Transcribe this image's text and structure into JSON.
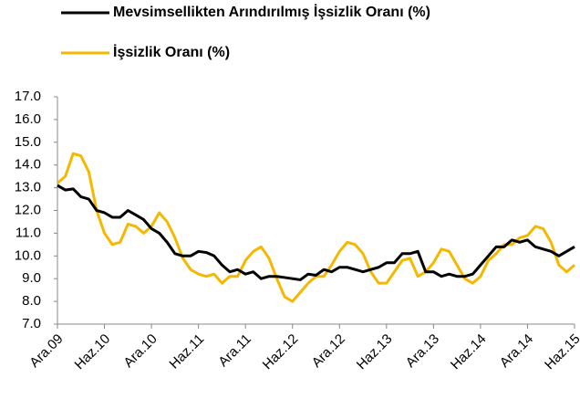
{
  "chart_data": {
    "type": "line",
    "categories": [
      "Ara.09",
      null,
      null,
      null,
      null,
      null,
      "Haz.10",
      null,
      null,
      null,
      null,
      null,
      "Ara.10",
      null,
      null,
      null,
      null,
      null,
      "Haz.11",
      null,
      null,
      null,
      null,
      null,
      "Ara.11",
      null,
      null,
      null,
      null,
      null,
      "Haz.12",
      null,
      null,
      null,
      null,
      null,
      "Ara.12",
      null,
      null,
      null,
      null,
      null,
      "Haz.13",
      null,
      null,
      null,
      null,
      null,
      "Ara.13",
      null,
      null,
      null,
      null,
      null,
      "Haz.14",
      null,
      null,
      null,
      null,
      null,
      "Ara.14",
      null,
      null,
      null,
      null,
      null,
      "Haz.15"
    ],
    "series": [
      {
        "name": "Mevsimsellikten Arındırılmış İşsizlik Oranı (%)",
        "color": "#000000",
        "values": [
          13.1,
          12.9,
          12.95,
          12.6,
          12.5,
          12.0,
          11.9,
          11.7,
          11.7,
          12.0,
          11.8,
          11.6,
          11.2,
          11.0,
          10.6,
          10.1,
          10.0,
          10.0,
          10.2,
          10.15,
          10.0,
          9.6,
          9.3,
          9.4,
          9.2,
          9.3,
          9.0,
          9.1,
          9.1,
          9.05,
          9.0,
          8.95,
          9.2,
          9.15,
          9.4,
          9.3,
          9.5,
          9.5,
          9.4,
          9.3,
          9.4,
          9.5,
          9.7,
          9.7,
          10.1,
          10.1,
          10.2,
          9.3,
          9.3,
          9.1,
          9.2,
          9.1,
          9.1,
          9.2,
          9.6,
          10.0,
          10.4,
          10.4,
          10.7,
          10.6,
          10.7,
          10.4,
          10.3,
          10.2,
          10.0,
          10.2,
          10.4
        ]
      },
      {
        "name": "İşsizlik Oranı (%)",
        "color": "#f5b800",
        "values": [
          13.2,
          13.5,
          14.5,
          14.4,
          13.7,
          12.0,
          11.0,
          10.5,
          10.6,
          11.4,
          11.3,
          11.0,
          11.3,
          11.9,
          11.5,
          10.8,
          9.9,
          9.4,
          9.2,
          9.1,
          9.2,
          8.8,
          9.1,
          9.1,
          9.8,
          10.2,
          10.4,
          9.9,
          9.0,
          8.2,
          8.0,
          8.4,
          8.8,
          9.1,
          9.1,
          9.6,
          10.2,
          10.6,
          10.5,
          10.1,
          9.3,
          8.8,
          8.8,
          9.3,
          9.8,
          9.9,
          9.1,
          9.3,
          9.7,
          10.3,
          10.2,
          9.6,
          9.0,
          8.8,
          9.1,
          9.8,
          10.1,
          10.5,
          10.5,
          10.8,
          10.9,
          11.3,
          11.2,
          10.6,
          9.6,
          9.3,
          9.6
        ]
      }
    ],
    "ylim": [
      7,
      17
    ],
    "yticks": [
      {
        "value": 7,
        "label": "7.0"
      },
      {
        "value": 8,
        "label": "8.0"
      },
      {
        "value": 9,
        "label": "9.0"
      },
      {
        "value": 10,
        "label": "10.0"
      },
      {
        "value": 11,
        "label": "11.0"
      },
      {
        "value": 12,
        "label": "12.0"
      },
      {
        "value": 13,
        "label": "13.0"
      },
      {
        "value": 14,
        "label": "14.0"
      },
      {
        "value": 15,
        "label": "15.0"
      },
      {
        "value": 16,
        "label": "16.0"
      },
      {
        "value": 17,
        "label": "17.0"
      }
    ],
    "grid": false
  }
}
